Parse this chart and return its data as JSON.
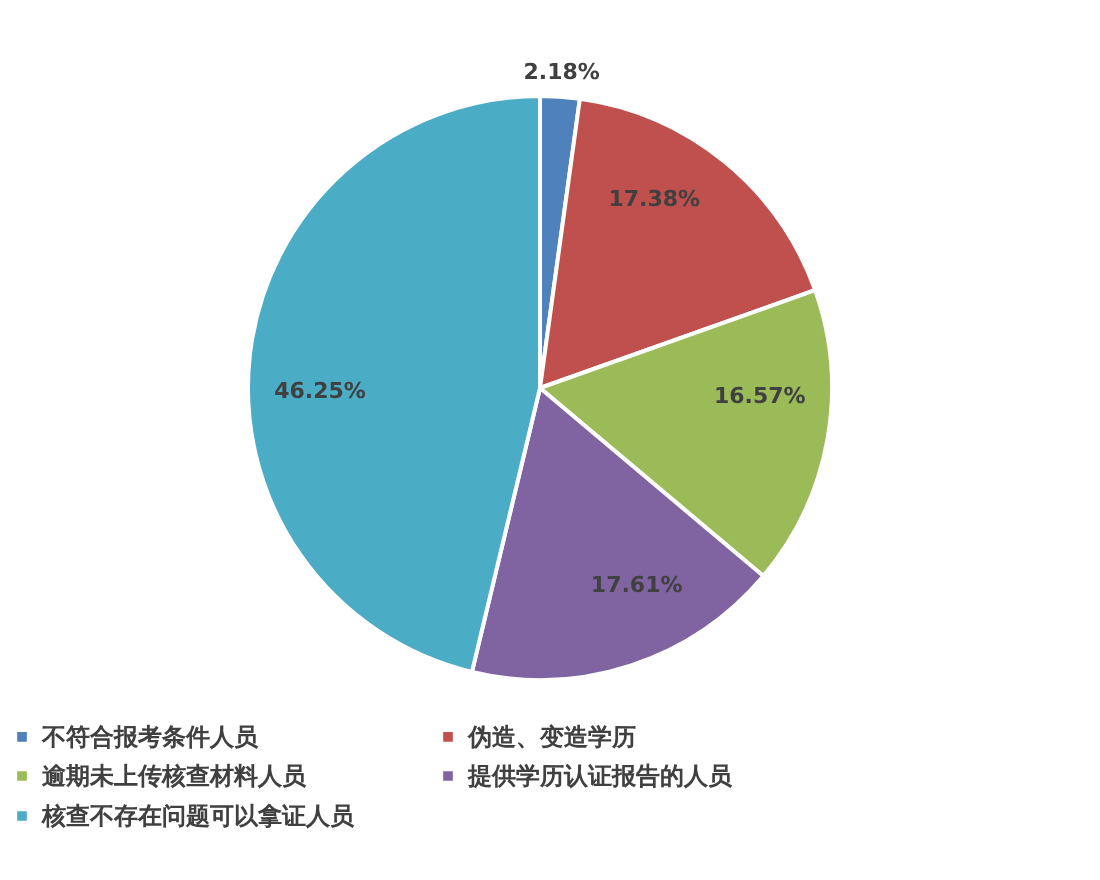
{
  "chart_data": {
    "type": "pie",
    "categories": [
      "不符合报考条件人员",
      "伪造、变造学历",
      "逾期未上传核查材料人员",
      "提供学历认证报告的人员",
      "核查不存在问题可以拿证人员"
    ],
    "values": [
      2.18,
      17.38,
      16.57,
      17.61,
      46.25
    ],
    "value_labels": [
      "2.18%",
      "17.38%",
      "16.57%",
      "17.61%",
      "46.25%"
    ],
    "colors": [
      "#4f81bd",
      "#c0504d",
      "#9bbb59",
      "#8064a2",
      "#4bacc6"
    ],
    "legend": "bottom"
  }
}
